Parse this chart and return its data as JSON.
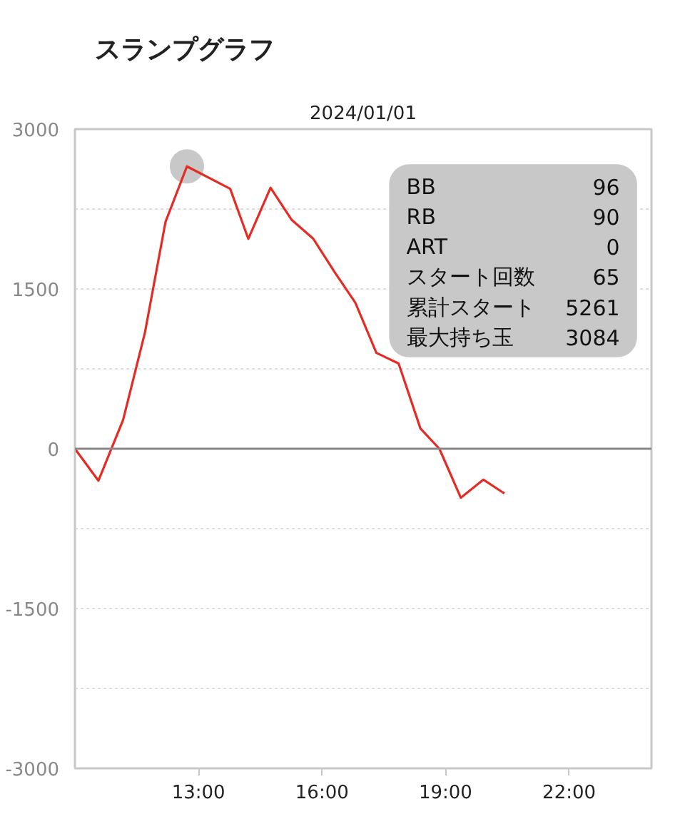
{
  "chart_data": {
    "type": "line",
    "title": "スランプグラフ",
    "subtitle": "2024/01/01",
    "xlim": [
      10,
      24
    ],
    "xticks": [
      {
        "value": 13,
        "label": "13:00"
      },
      {
        "value": 16,
        "label": "16:00"
      },
      {
        "value": 19,
        "label": "19:00"
      },
      {
        "value": 22,
        "label": "22:00"
      }
    ],
    "ylim": [
      -3000,
      3000
    ],
    "yticks": [
      -3000,
      {
        "value": -2250,
        "label": null
      },
      -1500,
      {
        "value": -750,
        "label": null
      },
      0,
      {
        "value": 750,
        "label": null
      },
      1500,
      {
        "value": 2250,
        "label": null
      },
      3000
    ],
    "grid": "y",
    "ref_lines": [
      {
        "axis": "y",
        "value": 0,
        "color": "#888888"
      }
    ],
    "series": [
      {
        "type": "scatter",
        "marker": "circle",
        "color": "#c8c8c8",
        "x": [
          12.72
        ],
        "values": [
          2650
        ]
      },
      {
        "color": "#e52b24",
        "x": [
          10.0,
          10.57,
          11.17,
          11.7,
          12.2,
          12.72,
          13.77,
          14.21,
          14.75,
          15.26,
          15.79,
          16.32,
          16.81,
          17.32,
          17.86,
          18.39,
          18.85,
          19.37,
          19.92,
          20.43
        ],
        "values": [
          0,
          -300,
          270,
          1090,
          2130,
          2650,
          2440,
          1970,
          2450,
          2150,
          1970,
          1650,
          1370,
          900,
          800,
          190,
          0,
          -460,
          -290,
          -420
        ]
      }
    ],
    "annotations": [
      "BB",
      "96",
      "RB",
      "90",
      "ART",
      "0",
      "スタート回数",
      "65",
      "累計スタート",
      "5261",
      "最大持ち玉",
      "3084"
    ]
  }
}
